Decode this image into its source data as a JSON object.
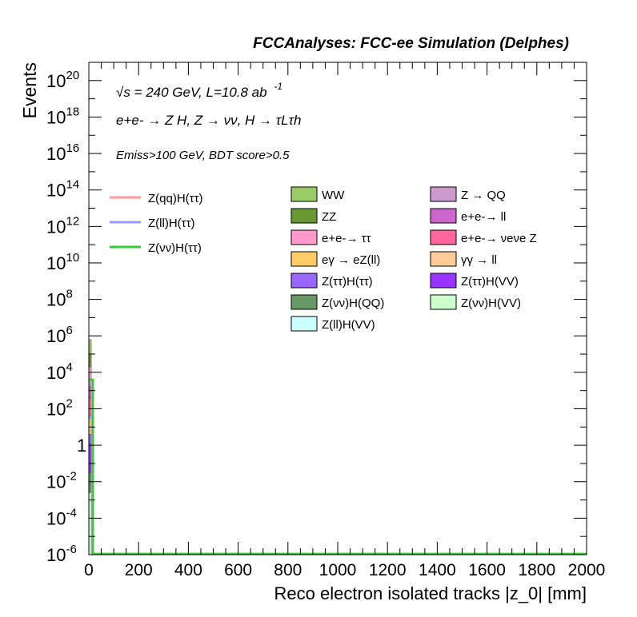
{
  "chart_data": {
    "type": "bar",
    "title": "FCCAnalyses: FCC-ee Simulation (Delphes)",
    "xlabel": "Reco electron isolated tracks |z_0| [mm]",
    "ylabel": "Events",
    "xlim": [
      0,
      2000
    ],
    "ylim_log10": [
      -6,
      21
    ],
    "y_scale": "log",
    "x_ticks": [
      "0",
      "200",
      "400",
      "600",
      "800",
      "1000",
      "1200",
      "1400",
      "1600",
      "1800",
      "2000"
    ],
    "y_ticks": [
      {
        "base": "10",
        "exp": "20",
        "log": 20
      },
      {
        "base": "10",
        "exp": "18",
        "log": 18
      },
      {
        "base": "10",
        "exp": "16",
        "log": 16
      },
      {
        "base": "10",
        "exp": "14",
        "log": 14
      },
      {
        "base": "10",
        "exp": "12",
        "log": 12
      },
      {
        "base": "10",
        "exp": "10",
        "log": 10
      },
      {
        "base": "10",
        "exp": "8",
        "log": 8
      },
      {
        "base": "10",
        "exp": "6",
        "log": 6
      },
      {
        "base": "10",
        "exp": "4",
        "log": 4
      },
      {
        "base": "10",
        "exp": "2",
        "log": 2
      },
      {
        "base": "1",
        "exp": "",
        "log": 0
      },
      {
        "base": "10",
        "exp": "-2",
        "log": -2
      },
      {
        "base": "10",
        "exp": "-4",
        "log": -4
      },
      {
        "base": "10",
        "exp": "-6",
        "log": -6
      }
    ],
    "annotations": {
      "line1": "√s = 240 GeV, L=10.8 ab",
      "line1_sup": "-1",
      "line2": "e+e- → Z H, Z → νν, H → τLτh",
      "line3": "Emiss>100 GeV, BDT score>0.5"
    },
    "stack_bins": {
      "bin_width_mm": 10,
      "first_bin_segments": [
        {
          "name": "WW",
          "color": "#99cc66",
          "log_top": 5.8
        },
        {
          "name": "ZZ",
          "color": "#669933",
          "log_top": 5.0
        },
        {
          "name": "e+e-→ ττ",
          "color": "#ff99cc",
          "log_top": 4.3
        },
        {
          "name": "Z → QQ",
          "color": "#cc99cc",
          "log_top": 3.6
        },
        {
          "name": "e+e-→ ll",
          "color": "#cc66cc",
          "log_top": 3.2
        },
        {
          "name": "e+e-→ νeνe Z",
          "color": "#ff6699",
          "log_top": 2.6
        },
        {
          "name": "eγ → eZ(ll)",
          "color": "#ffcc66",
          "log_top": 1.6
        },
        {
          "name": "γγ → ll",
          "color": "#ffcc99",
          "log_top": 1.0
        },
        {
          "name": "Z(ττ)H(ττ)",
          "color": "#9966ff",
          "log_top": 0.6
        },
        {
          "name": "Z(ττ)H(VV)",
          "color": "#9933ff",
          "log_top": 0.1
        },
        {
          "name": "Z(νν)H(QQ)",
          "color": "#669966",
          "log_top": -1.5
        },
        {
          "name": "Z(νν)H(VV)",
          "color": "#ccffcc",
          "log_top": -2.6
        },
        {
          "name": "Z(ll)H(VV)",
          "color": "#ccffff",
          "log_top": -6
        }
      ]
    },
    "signal_lines": [
      {
        "name": "Z(qq)H(ττ)",
        "color": "#ff9999",
        "log_value": 0.8
      },
      {
        "name": "Z(ll)H(ττ)",
        "color": "#9999ff",
        "log_value": 1.5
      },
      {
        "name": "Z(νν)H(ττ)",
        "color": "#33cc33",
        "log_value": 3.6
      }
    ],
    "legend_signal": [
      "Z(qq)H(ττ)",
      "Z(ll)H(ττ)",
      "Z(νν)H(ττ)"
    ],
    "legend_bkg_col1": [
      {
        "name": "WW",
        "color": "#99cc66"
      },
      {
        "name": "ZZ",
        "color": "#669933"
      },
      {
        "name": "e+e-→ ττ",
        "color": "#ff99cc"
      },
      {
        "name": "eγ → eZ(ll)",
        "color": "#ffcc66"
      },
      {
        "name": "Z(ττ)H(ττ)",
        "color": "#9966ff"
      },
      {
        "name": "Z(νν)H(QQ)",
        "color": "#669966"
      },
      {
        "name": "Z(ll)H(VV)",
        "color": "#ccffff"
      }
    ],
    "legend_bkg_col2": [
      {
        "name": "Z → QQ",
        "color": "#cc99cc"
      },
      {
        "name": "e+e-→ ll",
        "color": "#cc66cc"
      },
      {
        "name": "e+e-→ νeνe Z",
        "color": "#ff6699"
      },
      {
        "name": "γγ → ll",
        "color": "#ffcc99"
      },
      {
        "name": "Z(ττ)H(VV)",
        "color": "#9933ff"
      },
      {
        "name": "Z(νν)H(VV)",
        "color": "#ccffcc"
      }
    ]
  }
}
